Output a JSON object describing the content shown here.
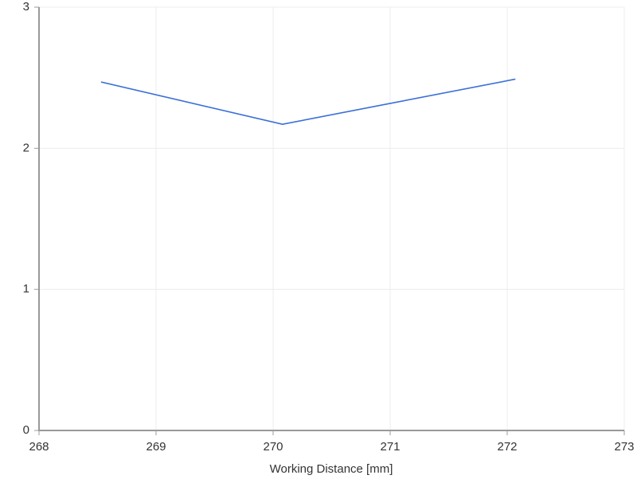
{
  "chart_data": {
    "type": "line",
    "x_label": "Working Distance [mm]",
    "x": [
      268.53,
      270.08,
      272.07
    ],
    "values": [
      2.47,
      2.17,
      2.49
    ],
    "color": "#3a6fd8",
    "xlim": [
      268,
      273
    ],
    "xticks": [
      268,
      269,
      270,
      271,
      272,
      273
    ],
    "ylim": [
      0,
      3
    ],
    "yticks": [
      0,
      1,
      2,
      3
    ],
    "grid": true
  }
}
